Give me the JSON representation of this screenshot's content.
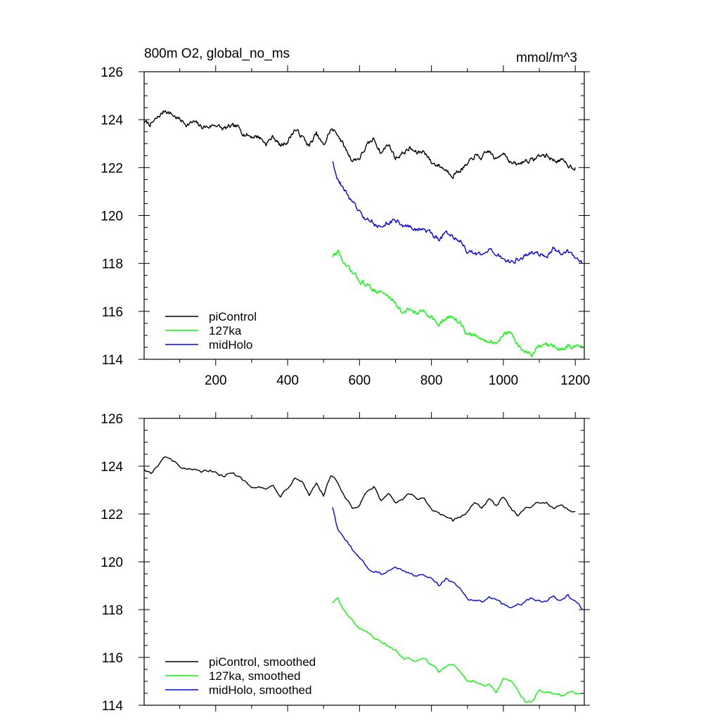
{
  "chart_data": [
    {
      "type": "line",
      "title": "800m O2, global_no_ms",
      "units": "mmol/m^3",
      "xlim": [
        1,
        1225
      ],
      "ylim": [
        114,
        126
      ],
      "xticks": [
        200,
        400,
        600,
        800,
        1000,
        1200
      ],
      "xtick_labels": [
        "200",
        "400",
        "600",
        "800",
        "1000",
        "1200"
      ],
      "yticks": [
        114,
        116,
        118,
        120,
        122,
        124,
        126
      ],
      "ytick_labels": [
        "114",
        "116",
        "118",
        "120",
        "122",
        "124",
        "126"
      ],
      "legend_position": "bottom-left",
      "series": [
        {
          "name": "piControl",
          "color": "#000000",
          "smoothed": false,
          "x": [
            1,
            20,
            40,
            60,
            80,
            100,
            120,
            140,
            160,
            180,
            200,
            220,
            240,
            260,
            280,
            300,
            320,
            340,
            360,
            380,
            400,
            420,
            440,
            460,
            480,
            500,
            520,
            540,
            560,
            580,
            600,
            620,
            640,
            660,
            680,
            700,
            720,
            740,
            760,
            780,
            800,
            820,
            840,
            860,
            880,
            900,
            920,
            940,
            960,
            980,
            1000,
            1020,
            1040,
            1060,
            1080,
            1100,
            1120,
            1140,
            1160,
            1180,
            1200
          ],
          "y": [
            123.9,
            123.8,
            124.1,
            124.4,
            124.2,
            124.0,
            123.8,
            123.9,
            123.7,
            123.7,
            123.8,
            123.6,
            123.7,
            123.7,
            123.4,
            123.3,
            123.3,
            123.0,
            123.3,
            122.9,
            123.1,
            123.6,
            123.3,
            122.9,
            123.4,
            122.9,
            123.6,
            123.4,
            122.8,
            122.3,
            122.4,
            122.9,
            123.2,
            122.6,
            123.0,
            122.4,
            122.6,
            122.8,
            122.6,
            122.7,
            122.2,
            122.1,
            121.9,
            121.7,
            121.9,
            122.1,
            122.5,
            122.4,
            122.7,
            122.3,
            122.7,
            122.2,
            122.1,
            122.3,
            122.3,
            122.5,
            122.5,
            122.3,
            122.3,
            122.1,
            122.0
          ]
        },
        {
          "name": "127ka",
          "color": "#00ff00",
          "smoothed": false,
          "x": [
            525,
            540,
            560,
            580,
            600,
            620,
            640,
            660,
            680,
            700,
            720,
            740,
            760,
            780,
            800,
            820,
            840,
            860,
            880,
            900,
            920,
            940,
            960,
            980,
            1000,
            1020,
            1040,
            1060,
            1080,
            1100,
            1120,
            1140,
            1160,
            1180,
            1200,
            1220
          ],
          "y": [
            118.3,
            118.5,
            117.9,
            117.6,
            117.3,
            117.1,
            116.9,
            116.8,
            116.6,
            116.4,
            115.9,
            116.1,
            115.9,
            116.0,
            115.8,
            115.4,
            115.7,
            115.8,
            115.5,
            115.0,
            115.0,
            114.8,
            114.8,
            114.6,
            115.1,
            115.1,
            114.6,
            114.3,
            114.2,
            114.5,
            114.6,
            114.5,
            114.4,
            114.6,
            114.5,
            114.5
          ]
        },
        {
          "name": "midHolo",
          "color": "#0000ff",
          "smoothed": false,
          "x": [
            525,
            540,
            560,
            580,
            600,
            620,
            640,
            660,
            680,
            700,
            720,
            740,
            760,
            780,
            800,
            820,
            840,
            860,
            880,
            900,
            920,
            940,
            960,
            980,
            1000,
            1020,
            1040,
            1060,
            1080,
            1100,
            1120,
            1140,
            1160,
            1180,
            1200,
            1220
          ],
          "y": [
            122.3,
            121.5,
            121.0,
            120.6,
            120.1,
            119.8,
            119.7,
            119.5,
            119.7,
            119.8,
            119.6,
            119.5,
            119.4,
            119.4,
            119.3,
            119.0,
            119.3,
            119.1,
            118.9,
            118.5,
            118.4,
            118.3,
            118.5,
            118.4,
            118.2,
            118.0,
            118.2,
            118.3,
            118.5,
            118.4,
            118.3,
            118.6,
            118.4,
            118.5,
            118.3,
            118.0
          ]
        }
      ]
    },
    {
      "type": "line",
      "title": "",
      "xlim": [
        1,
        1225
      ],
      "ylim": [
        114,
        126
      ],
      "xticks": [
        200,
        400,
        600,
        800,
        1000,
        1200
      ],
      "yticks": [
        114,
        116,
        118,
        120,
        122,
        124,
        126
      ],
      "ytick_labels": [
        "114",
        "116",
        "118",
        "120",
        "122",
        "124",
        "126"
      ],
      "legend_position": "bottom-left",
      "series": [
        {
          "name": "piControl, smoothed",
          "color": "#000000",
          "smoothed": true,
          "x": [
            1,
            20,
            40,
            60,
            80,
            100,
            120,
            140,
            160,
            180,
            200,
            220,
            240,
            260,
            280,
            300,
            320,
            340,
            360,
            380,
            400,
            420,
            440,
            460,
            480,
            500,
            520,
            540,
            560,
            580,
            600,
            620,
            640,
            660,
            680,
            700,
            720,
            740,
            760,
            780,
            800,
            820,
            840,
            860,
            880,
            900,
            920,
            940,
            960,
            980,
            1000,
            1020,
            1040,
            1060,
            1080,
            1100,
            1120,
            1140,
            1160,
            1180,
            1200
          ],
          "y": [
            123.9,
            123.7,
            124.0,
            124.4,
            124.2,
            124.0,
            123.8,
            123.8,
            123.7,
            123.8,
            123.8,
            123.6,
            123.7,
            123.6,
            123.4,
            123.2,
            123.2,
            123.0,
            123.2,
            122.8,
            123.1,
            123.6,
            123.4,
            122.8,
            123.3,
            122.8,
            123.6,
            123.3,
            122.7,
            122.2,
            122.3,
            122.9,
            123.1,
            122.5,
            122.9,
            122.4,
            122.6,
            122.8,
            122.6,
            122.7,
            122.2,
            122.1,
            121.8,
            121.7,
            121.9,
            122.1,
            122.5,
            122.3,
            122.6,
            122.3,
            122.7,
            122.2,
            122.0,
            122.3,
            122.3,
            122.5,
            122.5,
            122.3,
            122.3,
            122.2,
            122.1
          ]
        },
        {
          "name": "127ka, smoothed",
          "color": "#00ff00",
          "smoothed": true,
          "x": [
            525,
            540,
            560,
            580,
            600,
            620,
            640,
            660,
            680,
            700,
            720,
            740,
            760,
            780,
            800,
            820,
            840,
            860,
            880,
            900,
            920,
            940,
            960,
            980,
            1000,
            1020,
            1040,
            1060,
            1080,
            1100,
            1120,
            1140,
            1160,
            1180,
            1200,
            1220
          ],
          "y": [
            118.3,
            118.4,
            117.9,
            117.5,
            117.2,
            117.0,
            116.8,
            116.7,
            116.5,
            116.3,
            115.9,
            116.0,
            115.9,
            115.9,
            115.7,
            115.4,
            115.7,
            115.7,
            115.4,
            115.0,
            115.0,
            114.8,
            114.8,
            114.6,
            115.1,
            115.0,
            114.6,
            114.2,
            114.2,
            114.6,
            114.6,
            114.5,
            114.4,
            114.6,
            114.5,
            114.5
          ]
        },
        {
          "name": "midHolo, smoothed",
          "color": "#0000ff",
          "smoothed": true,
          "x": [
            525,
            540,
            560,
            580,
            600,
            620,
            640,
            660,
            680,
            700,
            720,
            740,
            760,
            780,
            800,
            820,
            840,
            860,
            880,
            900,
            920,
            940,
            960,
            980,
            1000,
            1020,
            1040,
            1060,
            1080,
            1100,
            1120,
            1140,
            1160,
            1180,
            1200,
            1220
          ],
          "y": [
            122.3,
            121.3,
            120.9,
            120.5,
            120.1,
            119.8,
            119.6,
            119.5,
            119.7,
            119.8,
            119.6,
            119.5,
            119.4,
            119.4,
            119.3,
            119.0,
            119.3,
            119.1,
            118.9,
            118.5,
            118.4,
            118.3,
            118.5,
            118.4,
            118.2,
            118.0,
            118.2,
            118.3,
            118.5,
            118.4,
            118.3,
            118.6,
            118.4,
            118.6,
            118.3,
            118.0
          ]
        }
      ]
    }
  ]
}
